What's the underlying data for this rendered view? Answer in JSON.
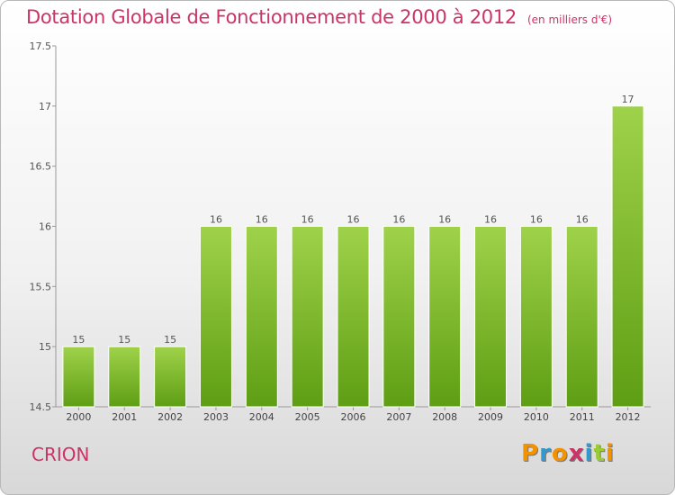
{
  "chart_data": {
    "type": "bar",
    "title": "Dotation Globale de Fonctionnement de 2000 à 2012",
    "subtitle": "(en milliers d'€)",
    "categories": [
      "2000",
      "2001",
      "2002",
      "2003",
      "2004",
      "2005",
      "2006",
      "2007",
      "2008",
      "2009",
      "2010",
      "2011",
      "2012"
    ],
    "values": [
      15,
      15,
      15,
      16,
      16,
      16,
      16,
      16,
      16,
      16,
      16,
      16,
      17
    ],
    "data_labels": [
      "15",
      "15",
      "15",
      "16",
      "16",
      "16",
      "16",
      "16",
      "16",
      "16",
      "16",
      "16",
      "17"
    ],
    "xlabel": "",
    "ylabel": "",
    "ylim": [
      14.5,
      17.5
    ],
    "yticks": [
      14.5,
      15,
      15.5,
      16,
      16.5,
      17,
      17.5
    ],
    "ytick_labels": [
      "14.5",
      "15",
      "15.5",
      "16",
      "16.5",
      "17",
      "17.5"
    ],
    "grid": false,
    "bar_color": "#7fbf2f"
  },
  "footer": {
    "commune": "CRION",
    "logo_letters": [
      "P",
      "r",
      "o",
      "x",
      "i",
      "t",
      "i"
    ],
    "logo_colors": [
      "#f39200",
      "#3399cc",
      "#f39200",
      "#cc3366",
      "#3399cc",
      "#99cc33",
      "#f39200"
    ]
  }
}
